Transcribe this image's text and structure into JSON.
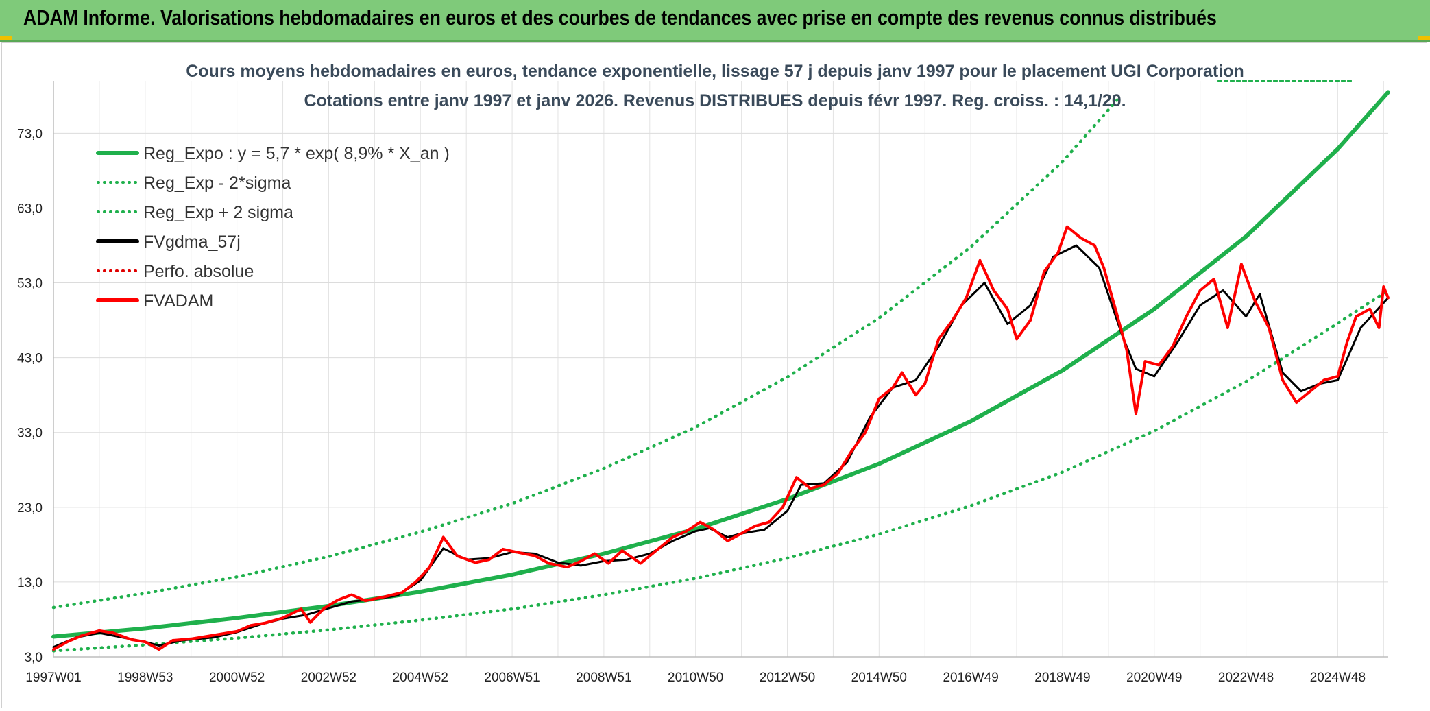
{
  "header": {
    "title": "ADAM Informe. Valorisations hebdomadaires en euros et des courbes de tendances avec prise en compte des revenus connus distribués"
  },
  "chart_data": {
    "type": "line",
    "title": "Cours moyens hebdomadaires en euros, tendance exponentielle, lissage 57 j depuis janv 1997 pour le placement UGI Corporation",
    "subtitle": "Cotations entre janv 1997 et janv 2026. Revenus DISTRIBUES depuis févr 1997. Reg. croiss. : 14,1/20.",
    "xlabel": "",
    "ylabel": "",
    "ylim": [
      3,
      80
    ],
    "xlim": [
      1997.0,
      2026.1
    ],
    "grid": true,
    "legend_position": "top-left",
    "y_ticks": [
      "3,0",
      "13,0",
      "23,0",
      "33,0",
      "43,0",
      "53,0",
      "63,0",
      "73,0"
    ],
    "y_tick_values": [
      3,
      13,
      23,
      33,
      43,
      53,
      63,
      73
    ],
    "x_ticks": [
      "1997W01",
      "1998W53",
      "2000W52",
      "2002W52",
      "2004W52",
      "2006W51",
      "2008W51",
      "2010W50",
      "2012W50",
      "2014W50",
      "2016W49",
      "2018W49",
      "2020W49",
      "2022W48",
      "2024W48"
    ],
    "x_tick_values": [
      1997.0,
      1999.0,
      2001.0,
      2003.0,
      2005.0,
      2007.0,
      2009.0,
      2011.0,
      2013.0,
      2015.0,
      2017.0,
      2019.0,
      2021.0,
      2023.0,
      2025.0
    ],
    "series": [
      {
        "name": "Reg_Expo : y = 5,7 * exp( 8,9% *  X_an )",
        "color": "#1fb04c",
        "style": "solid",
        "points": [
          [
            1997.0,
            5.7
          ],
          [
            1999.0,
            6.8
          ],
          [
            2001.0,
            8.2
          ],
          [
            2003.0,
            9.8
          ],
          [
            2005.0,
            11.7
          ],
          [
            2007.0,
            14.0
          ],
          [
            2009.0,
            16.8
          ],
          [
            2011.0,
            20.1
          ],
          [
            2013.0,
            24.1
          ],
          [
            2015.0,
            28.8
          ],
          [
            2017.0,
            34.5
          ],
          [
            2019.0,
            41.3
          ],
          [
            2021.0,
            49.5
          ],
          [
            2023.0,
            59.2
          ],
          [
            2025.0,
            70.9
          ],
          [
            2026.1,
            78.5
          ]
        ]
      },
      {
        "name": "Reg_Exp - 2*sigma",
        "color": "#1fb04c",
        "style": "dotted",
        "points": [
          [
            1997.0,
            3.8
          ],
          [
            1999.0,
            4.6
          ],
          [
            2001.0,
            5.5
          ],
          [
            2003.0,
            6.6
          ],
          [
            2005.0,
            7.9
          ],
          [
            2007.0,
            9.4
          ],
          [
            2009.0,
            11.3
          ],
          [
            2011.0,
            13.5
          ],
          [
            2013.0,
            16.2
          ],
          [
            2015.0,
            19.4
          ],
          [
            2017.0,
            23.2
          ],
          [
            2019.0,
            27.7
          ],
          [
            2021.0,
            33.2
          ],
          [
            2023.0,
            39.8
          ],
          [
            2025.0,
            47.6
          ],
          [
            2026.1,
            52.0
          ]
        ]
      },
      {
        "name": "Reg_Exp + 2 sigma",
        "color": "#1fb04c",
        "style": "dotted",
        "points": [
          [
            1997.0,
            9.6
          ],
          [
            1999.0,
            11.5
          ],
          [
            2001.0,
            13.7
          ],
          [
            2003.0,
            16.4
          ],
          [
            2005.0,
            19.7
          ],
          [
            2007.0,
            23.5
          ],
          [
            2009.0,
            28.2
          ],
          [
            2011.0,
            33.7
          ],
          [
            2013.0,
            40.4
          ],
          [
            2015.0,
            48.3
          ],
          [
            2017.0,
            57.8
          ],
          [
            2019.0,
            69.2
          ],
          [
            2020.2,
            77.5
          ]
        ]
      },
      {
        "name": "FVgdma_57j",
        "color": "#000000",
        "style": "solid",
        "points": [
          [
            1997.0,
            4.3
          ],
          [
            1997.5,
            5.6
          ],
          [
            1998.0,
            6.2
          ],
          [
            1998.5,
            5.6
          ],
          [
            1999.0,
            5.0
          ],
          [
            1999.3,
            4.5
          ],
          [
            1999.8,
            5.2
          ],
          [
            2000.5,
            5.6
          ],
          [
            2001.0,
            6.3
          ],
          [
            2001.5,
            7.3
          ],
          [
            2002.0,
            8.1
          ],
          [
            2002.5,
            8.6
          ],
          [
            2003.0,
            9.5
          ],
          [
            2003.5,
            10.4
          ],
          [
            2004.0,
            10.7
          ],
          [
            2004.5,
            11.2
          ],
          [
            2005.0,
            13.2
          ],
          [
            2005.5,
            17.5
          ],
          [
            2006.0,
            16.0
          ],
          [
            2006.5,
            16.2
          ],
          [
            2007.0,
            17.0
          ],
          [
            2007.5,
            16.8
          ],
          [
            2008.0,
            15.6
          ],
          [
            2008.5,
            15.2
          ],
          [
            2009.0,
            15.8
          ],
          [
            2009.5,
            16.0
          ],
          [
            2010.0,
            16.8
          ],
          [
            2010.5,
            18.5
          ],
          [
            2011.0,
            19.8
          ],
          [
            2011.3,
            20.2
          ],
          [
            2011.7,
            19.0
          ],
          [
            2012.0,
            19.5
          ],
          [
            2012.5,
            20.0
          ],
          [
            2013.0,
            22.5
          ],
          [
            2013.3,
            26.0
          ],
          [
            2013.8,
            26.2
          ],
          [
            2014.3,
            29.0
          ],
          [
            2014.8,
            35.0
          ],
          [
            2015.3,
            39.0
          ],
          [
            2015.8,
            40.0
          ],
          [
            2016.3,
            44.5
          ],
          [
            2016.8,
            50.0
          ],
          [
            2017.3,
            53.0
          ],
          [
            2017.8,
            47.5
          ],
          [
            2018.3,
            50.0
          ],
          [
            2018.8,
            56.5
          ],
          [
            2019.3,
            58.0
          ],
          [
            2019.8,
            55.0
          ],
          [
            2020.3,
            46.0
          ],
          [
            2020.6,
            41.5
          ],
          [
            2021.0,
            40.5
          ],
          [
            2021.5,
            45.0
          ],
          [
            2022.0,
            50.0
          ],
          [
            2022.5,
            52.0
          ],
          [
            2023.0,
            48.5
          ],
          [
            2023.3,
            51.5
          ],
          [
            2023.8,
            41.0
          ],
          [
            2024.2,
            38.5
          ],
          [
            2024.6,
            39.5
          ],
          [
            2025.0,
            40.0
          ],
          [
            2025.5,
            47.0
          ],
          [
            2026.1,
            51.0
          ]
        ]
      },
      {
        "name": "Perfo. absolue",
        "color": "#e00000",
        "style": "dotted",
        "points": []
      },
      {
        "name": "FVADAM",
        "color": "#ff0000",
        "style": "solid",
        "points": [
          [
            1997.0,
            4.0
          ],
          [
            1997.3,
            5.0
          ],
          [
            1997.6,
            5.8
          ],
          [
            1998.0,
            6.5
          ],
          [
            1998.3,
            6.2
          ],
          [
            1998.7,
            5.3
          ],
          [
            1999.0,
            5.0
          ],
          [
            1999.3,
            4.0
          ],
          [
            1999.6,
            5.2
          ],
          [
            2000.0,
            5.4
          ],
          [
            2000.5,
            5.9
          ],
          [
            2001.0,
            6.4
          ],
          [
            2001.3,
            7.2
          ],
          [
            2001.6,
            7.5
          ],
          [
            2002.0,
            8.2
          ],
          [
            2002.4,
            9.4
          ],
          [
            2002.6,
            7.6
          ],
          [
            2002.9,
            9.5
          ],
          [
            2003.2,
            10.6
          ],
          [
            2003.5,
            11.3
          ],
          [
            2003.8,
            10.5
          ],
          [
            2004.2,
            11.0
          ],
          [
            2004.6,
            11.6
          ],
          [
            2004.9,
            13.0
          ],
          [
            2005.2,
            15.0
          ],
          [
            2005.5,
            19.0
          ],
          [
            2005.8,
            16.5
          ],
          [
            2006.2,
            15.6
          ],
          [
            2006.5,
            16.0
          ],
          [
            2006.8,
            17.4
          ],
          [
            2007.1,
            17.0
          ],
          [
            2007.5,
            16.5
          ],
          [
            2007.8,
            15.5
          ],
          [
            2008.2,
            15.0
          ],
          [
            2008.5,
            15.8
          ],
          [
            2008.8,
            16.8
          ],
          [
            2009.1,
            15.5
          ],
          [
            2009.4,
            17.2
          ],
          [
            2009.8,
            15.5
          ],
          [
            2010.2,
            17.5
          ],
          [
            2010.5,
            19.0
          ],
          [
            2010.8,
            19.8
          ],
          [
            2011.1,
            21.0
          ],
          [
            2011.4,
            20.0
          ],
          [
            2011.7,
            18.5
          ],
          [
            2012.0,
            19.5
          ],
          [
            2012.3,
            20.5
          ],
          [
            2012.6,
            21.0
          ],
          [
            2012.9,
            23.0
          ],
          [
            2013.2,
            27.0
          ],
          [
            2013.5,
            25.5
          ],
          [
            2013.8,
            26.0
          ],
          [
            2014.1,
            27.5
          ],
          [
            2014.4,
            30.5
          ],
          [
            2014.7,
            33.0
          ],
          [
            2015.0,
            37.5
          ],
          [
            2015.3,
            39.0
          ],
          [
            2015.5,
            41.0
          ],
          [
            2015.8,
            38.0
          ],
          [
            2016.0,
            39.5
          ],
          [
            2016.3,
            45.5
          ],
          [
            2016.6,
            48.0
          ],
          [
            2016.9,
            51.0
          ],
          [
            2017.2,
            56.0
          ],
          [
            2017.5,
            52.0
          ],
          [
            2017.8,
            49.5
          ],
          [
            2018.0,
            45.5
          ],
          [
            2018.3,
            48.0
          ],
          [
            2018.6,
            54.5
          ],
          [
            2018.9,
            57.0
          ],
          [
            2019.1,
            60.5
          ],
          [
            2019.4,
            59.0
          ],
          [
            2019.7,
            58.0
          ],
          [
            2019.9,
            55.0
          ],
          [
            2020.2,
            48.5
          ],
          [
            2020.4,
            44.0
          ],
          [
            2020.6,
            35.5
          ],
          [
            2020.8,
            42.5
          ],
          [
            2021.1,
            42.0
          ],
          [
            2021.4,
            44.5
          ],
          [
            2021.7,
            48.5
          ],
          [
            2022.0,
            52.0
          ],
          [
            2022.3,
            53.5
          ],
          [
            2022.6,
            47.0
          ],
          [
            2022.9,
            55.5
          ],
          [
            2023.2,
            50.5
          ],
          [
            2023.5,
            47.0
          ],
          [
            2023.8,
            40.0
          ],
          [
            2024.1,
            37.0
          ],
          [
            2024.4,
            38.5
          ],
          [
            2024.7,
            40.0
          ],
          [
            2025.0,
            40.5
          ],
          [
            2025.2,
            45.0
          ],
          [
            2025.4,
            48.5
          ],
          [
            2025.7,
            49.5
          ],
          [
            2025.9,
            47.0
          ],
          [
            2026.0,
            52.5
          ],
          [
            2026.1,
            51.0
          ]
        ]
      }
    ]
  }
}
